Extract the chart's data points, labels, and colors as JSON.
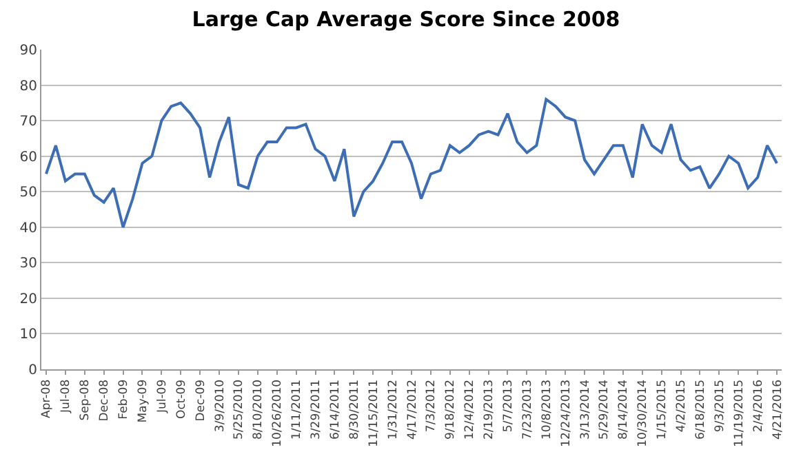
{
  "chart_data": {
    "type": "line",
    "title": "Large Cap Average Score Since 2008",
    "categories": [
      "Apr-08",
      null,
      "Jul-08",
      null,
      "Sep-08",
      null,
      "Dec-08",
      null,
      "Feb-09",
      null,
      "May-09",
      null,
      "Jul-09",
      null,
      "Oct-09",
      null,
      "Dec-09",
      null,
      "3/9/2010",
      null,
      "5/25/2010",
      null,
      "8/10/2010",
      null,
      "10/26/2010",
      null,
      "1/11/2011",
      null,
      "3/29/2011",
      null,
      "6/14/2011",
      null,
      "8/30/2011",
      null,
      "11/15/2011",
      null,
      "1/31/2012",
      null,
      "4/17/2012",
      null,
      "7/3/2012",
      null,
      "9/18/2012",
      null,
      "12/4/2012",
      null,
      "2/19/2013",
      null,
      "5/7/2013",
      null,
      "7/23/2013",
      null,
      "10/8/2013",
      null,
      "12/24/2013",
      null,
      "3/13/2014",
      null,
      "5/29/2014",
      null,
      "8/14/2014",
      null,
      "10/30/2014",
      null,
      "1/15/2015",
      null,
      "4/2/2015",
      null,
      "6/18/2015",
      null,
      "9/3/2015",
      null,
      "11/19/2015",
      null,
      "2/4/2016",
      null,
      "4/21/2016"
    ],
    "series": [
      {
        "color": "#3d6db5",
        "values": [
          55,
          63,
          53,
          55,
          55,
          49,
          47,
          51,
          40,
          48,
          58,
          60,
          70,
          74,
          75,
          72,
          68,
          54,
          64,
          71,
          52,
          51,
          60,
          64,
          64,
          68,
          68,
          69,
          62,
          60,
          53,
          62,
          43,
          50,
          53,
          58,
          64,
          64,
          58,
          48,
          55,
          56,
          63,
          61,
          63,
          66,
          67,
          66,
          72,
          64,
          61,
          63,
          76,
          74,
          71,
          70,
          59,
          55,
          59,
          63,
          63,
          54,
          69,
          63,
          61,
          69,
          59,
          56,
          57,
          51,
          55,
          60,
          58,
          51,
          54,
          63,
          58
        ]
      }
    ],
    "ylim": [
      0,
      90
    ],
    "yticks": [
      0,
      10,
      20,
      30,
      40,
      50,
      60,
      70,
      80,
      90
    ],
    "grid": "y",
    "marker": "none",
    "line_style": "solid"
  }
}
